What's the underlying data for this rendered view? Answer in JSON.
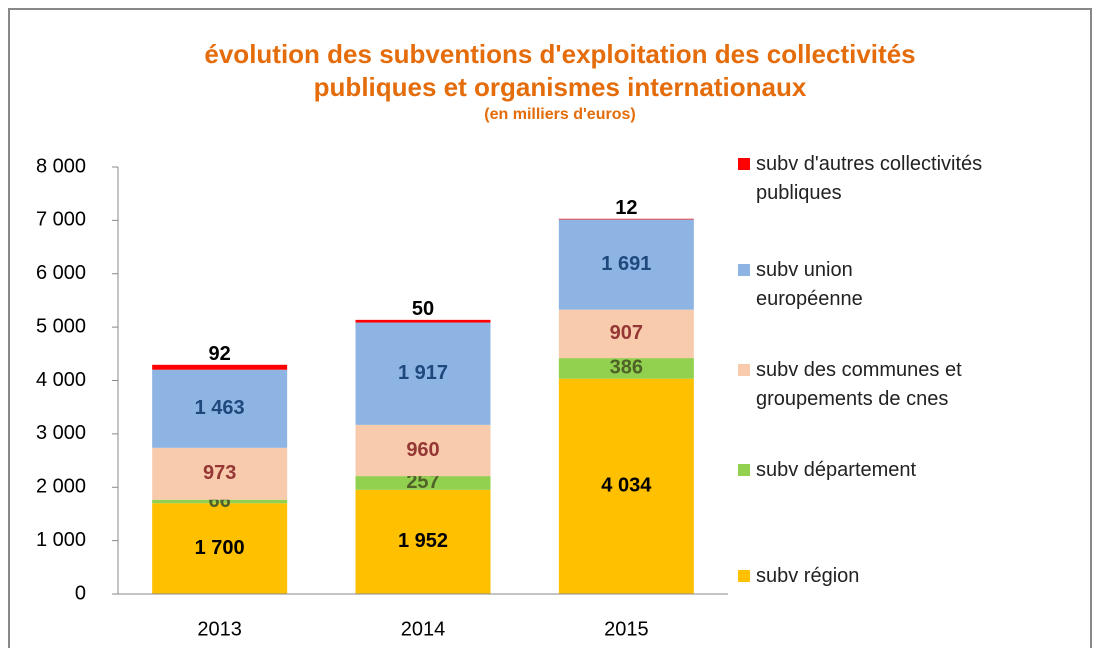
{
  "chart_data": {
    "type": "stacked_bar",
    "title": "évolution des subventions d'exploitation des collectivités publiques et organismes internationaux",
    "subtitle": "(en milliers  d'euros)",
    "categories": [
      "2013",
      "2014",
      "2015"
    ],
    "series": [
      {
        "name": "subv région",
        "color": "#FFC000",
        "label_color": "#000000",
        "values": [
          1700,
          1952,
          4034
        ],
        "value_labels": [
          "1 700",
          "1 952",
          "4 034"
        ]
      },
      {
        "name": "subv département",
        "color": "#92D050",
        "label_color": "#4F6228",
        "values": [
          66,
          257,
          386
        ]
      },
      {
        "name": "subv des communes et groupements de cnes",
        "color": "#F8CBAD",
        "label_color": "#953735",
        "values": [
          973,
          960,
          907
        ]
      },
      {
        "name": "subv union européenne",
        "color": "#8EB4E3",
        "label_color": "#1F497D",
        "values": [
          1463,
          1917,
          1691
        ],
        "value_labels": [
          "1 463",
          "1 917",
          "1 691"
        ]
      },
      {
        "name": "subv d'autres collectivités publiques",
        "color": "#FF0000",
        "label_color": "#000000",
        "values": [
          92,
          50,
          12
        ]
      }
    ],
    "ylim": [
      0,
      8000
    ],
    "yticks": [
      0,
      {
        "value": 1000,
        "label": "1 000"
      },
      {
        "value": 2000,
        "label": "2 000"
      },
      {
        "value": 3000,
        "label": "3 000"
      },
      {
        "value": 4000,
        "label": "4 000"
      },
      {
        "value": 5000,
        "label": "5 000"
      },
      {
        "value": 6000,
        "label": "6 000"
      },
      {
        "value": 7000,
        "label": "7 000"
      },
      {
        "value": 8000,
        "label": "8 000"
      }
    ],
    "legend": "right",
    "title_color": "#E46C0A"
  }
}
